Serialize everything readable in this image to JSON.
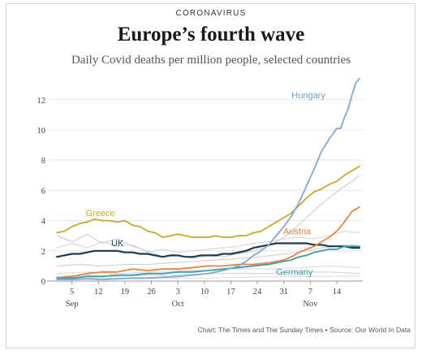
{
  "header": {
    "kicker": "CORONAVIRUS",
    "title": "Europe’s fourth wave",
    "subtitle": "Daily Covid deaths per million people, selected countries"
  },
  "footer": {
    "source": "Chart: The Times and The Sunday Times • Source: Our World In Data"
  },
  "chart_data": {
    "type": "line",
    "x_unit": "days",
    "x_domain": [
      0,
      80
    ],
    "ylim": [
      0,
      13.6
    ],
    "y_ticks": [
      0,
      2,
      4,
      6,
      8,
      10,
      12
    ],
    "x_ticks": [
      {
        "x": 4,
        "label": "5"
      },
      {
        "x": 11,
        "label": "12"
      },
      {
        "x": 18,
        "label": "19"
      },
      {
        "x": 25,
        "label": "26"
      },
      {
        "x": 32,
        "label": "3"
      },
      {
        "x": 39,
        "label": "10"
      },
      {
        "x": 46,
        "label": "17"
      },
      {
        "x": 53,
        "label": "24"
      },
      {
        "x": 60,
        "label": "31"
      },
      {
        "x": 67,
        "label": "7"
      },
      {
        "x": 74,
        "label": "14"
      }
    ],
    "month_labels": [
      {
        "x": 4,
        "label": "Sep"
      },
      {
        "x": 32,
        "label": "Oct"
      },
      {
        "x": 67,
        "label": "Nov"
      }
    ],
    "series": [
      {
        "name": "",
        "color": "#cfcfcf",
        "width": 1.2,
        "points": [
          [
            0,
            3.0
          ],
          [
            4,
            2.6
          ],
          [
            8,
            3.1
          ],
          [
            12,
            2.5
          ],
          [
            16,
            2.8
          ],
          [
            20,
            2.3
          ],
          [
            24,
            2.0
          ],
          [
            28,
            1.6
          ],
          [
            32,
            1.7
          ],
          [
            36,
            1.5
          ],
          [
            40,
            1.7
          ],
          [
            44,
            1.6
          ],
          [
            48,
            1.8
          ],
          [
            52,
            2.0
          ],
          [
            56,
            2.3
          ],
          [
            60,
            2.9
          ],
          [
            63,
            3.5
          ],
          [
            66,
            4.2
          ],
          [
            69,
            4.9
          ],
          [
            72,
            5.5
          ],
          [
            75,
            6.1
          ],
          [
            78,
            6.6
          ],
          [
            80,
            7.0
          ]
        ]
      },
      {
        "name": "",
        "color": "#d9d9d9",
        "width": 1.2,
        "points": [
          [
            0,
            2.2
          ],
          [
            4,
            2.5
          ],
          [
            8,
            2.2
          ],
          [
            12,
            2.6
          ],
          [
            16,
            2.3
          ],
          [
            20,
            2.4
          ],
          [
            24,
            1.9
          ],
          [
            28,
            2.1
          ],
          [
            32,
            1.9
          ],
          [
            36,
            2.0
          ],
          [
            40,
            2.1
          ],
          [
            44,
            2.2
          ],
          [
            48,
            2.3
          ],
          [
            52,
            2.5
          ],
          [
            56,
            2.6
          ],
          [
            60,
            2.8
          ],
          [
            64,
            2.9
          ],
          [
            68,
            2.8
          ],
          [
            72,
            3.0
          ],
          [
            76,
            3.3
          ],
          [
            80,
            3.2
          ]
        ]
      },
      {
        "name": "",
        "color": "#d2d2d2",
        "width": 1.2,
        "points": [
          [
            0,
            1.0
          ],
          [
            6,
            1.1
          ],
          [
            12,
            1.0
          ],
          [
            18,
            1.1
          ],
          [
            24,
            1.1
          ],
          [
            30,
            1.2
          ],
          [
            36,
            1.3
          ],
          [
            42,
            1.4
          ],
          [
            48,
            1.5
          ],
          [
            54,
            1.6
          ],
          [
            60,
            1.8
          ],
          [
            66,
            2.0
          ],
          [
            70,
            2.2
          ],
          [
            74,
            2.3
          ],
          [
            78,
            2.4
          ],
          [
            80,
            2.3
          ]
        ]
      },
      {
        "name": "",
        "color": "#dcdcdc",
        "width": 1.2,
        "points": [
          [
            0,
            0.5
          ],
          [
            8,
            0.6
          ],
          [
            16,
            0.5
          ],
          [
            24,
            0.6
          ],
          [
            32,
            0.7
          ],
          [
            40,
            0.7
          ],
          [
            48,
            0.8
          ],
          [
            56,
            0.8
          ],
          [
            64,
            0.9
          ],
          [
            72,
            1.0
          ],
          [
            80,
            0.9
          ]
        ]
      },
      {
        "name": "",
        "color": "#d4d4d4",
        "width": 1.2,
        "points": [
          [
            0,
            0.3
          ],
          [
            8,
            0.4
          ],
          [
            16,
            0.3
          ],
          [
            24,
            0.4
          ],
          [
            32,
            0.4
          ],
          [
            40,
            0.5
          ],
          [
            48,
            0.5
          ],
          [
            56,
            0.5
          ],
          [
            64,
            0.6
          ],
          [
            72,
            0.6
          ],
          [
            80,
            0.5
          ]
        ]
      },
      {
        "name": "",
        "color": "#e0e0e0",
        "width": 1.2,
        "points": [
          [
            0,
            0.15
          ],
          [
            10,
            0.2
          ],
          [
            20,
            0.15
          ],
          [
            30,
            0.2
          ],
          [
            40,
            0.2
          ],
          [
            50,
            0.25
          ],
          [
            60,
            0.3
          ],
          [
            70,
            0.3
          ],
          [
            80,
            0.35
          ]
        ]
      },
      {
        "name": "Greece",
        "color": "#c9a62c",
        "width": 1.8,
        "points": [
          [
            0,
            3.2
          ],
          [
            2,
            3.3
          ],
          [
            4,
            3.6
          ],
          [
            6,
            3.8
          ],
          [
            8,
            3.9
          ],
          [
            10,
            4.1
          ],
          [
            12,
            4.0
          ],
          [
            14,
            4.0
          ],
          [
            16,
            3.9
          ],
          [
            18,
            4.0
          ],
          [
            20,
            3.7
          ],
          [
            22,
            3.6
          ],
          [
            24,
            3.3
          ],
          [
            26,
            3.2
          ],
          [
            28,
            2.9
          ],
          [
            30,
            3.0
          ],
          [
            32,
            3.1
          ],
          [
            34,
            3.0
          ],
          [
            36,
            2.9
          ],
          [
            38,
            2.9
          ],
          [
            40,
            2.9
          ],
          [
            42,
            3.0
          ],
          [
            44,
            2.9
          ],
          [
            46,
            2.9
          ],
          [
            48,
            3.0
          ],
          [
            50,
            3.0
          ],
          [
            52,
            3.2
          ],
          [
            54,
            3.3
          ],
          [
            56,
            3.6
          ],
          [
            58,
            3.9
          ],
          [
            60,
            4.2
          ],
          [
            62,
            4.5
          ],
          [
            64,
            5.0
          ],
          [
            66,
            5.5
          ],
          [
            68,
            5.9
          ],
          [
            70,
            6.1
          ],
          [
            72,
            6.4
          ],
          [
            74,
            6.6
          ],
          [
            76,
            7.0
          ],
          [
            78,
            7.3
          ],
          [
            80,
            7.6
          ]
        ]
      },
      {
        "name": "UK",
        "color": "#1c3a4e",
        "width": 2.2,
        "points": [
          [
            0,
            1.6
          ],
          [
            2,
            1.7
          ],
          [
            4,
            1.8
          ],
          [
            6,
            1.8
          ],
          [
            8,
            1.9
          ],
          [
            10,
            2.0
          ],
          [
            12,
            2.0
          ],
          [
            14,
            2.0
          ],
          [
            16,
            2.0
          ],
          [
            18,
            1.9
          ],
          [
            20,
            1.9
          ],
          [
            22,
            1.8
          ],
          [
            24,
            1.8
          ],
          [
            26,
            1.7
          ],
          [
            28,
            1.6
          ],
          [
            30,
            1.7
          ],
          [
            32,
            1.7
          ],
          [
            34,
            1.6
          ],
          [
            36,
            1.6
          ],
          [
            38,
            1.7
          ],
          [
            40,
            1.7
          ],
          [
            42,
            1.7
          ],
          [
            44,
            1.8
          ],
          [
            46,
            1.8
          ],
          [
            48,
            1.9
          ],
          [
            50,
            2.0
          ],
          [
            52,
            2.2
          ],
          [
            54,
            2.3
          ],
          [
            56,
            2.4
          ],
          [
            58,
            2.5
          ],
          [
            60,
            2.5
          ],
          [
            62,
            2.5
          ],
          [
            64,
            2.5
          ],
          [
            66,
            2.5
          ],
          [
            68,
            2.4
          ],
          [
            70,
            2.4
          ],
          [
            72,
            2.3
          ],
          [
            74,
            2.3
          ],
          [
            76,
            2.3
          ],
          [
            78,
            2.2
          ],
          [
            80,
            2.2
          ]
        ]
      },
      {
        "name": "Austria",
        "color": "#e08640",
        "width": 1.8,
        "points": [
          [
            0,
            0.2
          ],
          [
            4,
            0.3
          ],
          [
            8,
            0.5
          ],
          [
            12,
            0.6
          ],
          [
            16,
            0.6
          ],
          [
            20,
            0.8
          ],
          [
            24,
            0.7
          ],
          [
            28,
            0.8
          ],
          [
            32,
            0.8
          ],
          [
            36,
            0.9
          ],
          [
            40,
            1.0
          ],
          [
            44,
            1.0
          ],
          [
            48,
            1.1
          ],
          [
            52,
            1.1
          ],
          [
            56,
            1.2
          ],
          [
            58,
            1.3
          ],
          [
            60,
            1.4
          ],
          [
            62,
            1.6
          ],
          [
            64,
            1.9
          ],
          [
            66,
            2.1
          ],
          [
            68,
            2.3
          ],
          [
            70,
            2.6
          ],
          [
            72,
            2.9
          ],
          [
            74,
            3.3
          ],
          [
            76,
            3.9
          ],
          [
            78,
            4.6
          ],
          [
            80,
            4.9
          ]
        ]
      },
      {
        "name": "Germany",
        "color": "#3d9aa6",
        "width": 1.8,
        "points": [
          [
            0,
            0.2
          ],
          [
            4,
            0.2
          ],
          [
            8,
            0.3
          ],
          [
            12,
            0.3
          ],
          [
            16,
            0.4
          ],
          [
            20,
            0.4
          ],
          [
            24,
            0.5
          ],
          [
            28,
            0.5
          ],
          [
            32,
            0.6
          ],
          [
            36,
            0.6
          ],
          [
            40,
            0.7
          ],
          [
            44,
            0.8
          ],
          [
            48,
            0.9
          ],
          [
            52,
            1.0
          ],
          [
            56,
            1.1
          ],
          [
            60,
            1.3
          ],
          [
            62,
            1.4
          ],
          [
            64,
            1.6
          ],
          [
            66,
            1.7
          ],
          [
            68,
            1.9
          ],
          [
            70,
            2.0
          ],
          [
            72,
            2.1
          ],
          [
            74,
            2.1
          ],
          [
            76,
            2.3
          ],
          [
            78,
            2.3
          ],
          [
            80,
            2.3
          ]
        ]
      },
      {
        "name": "Hungary",
        "color": "#7fa8d4",
        "width": 1.8,
        "points": [
          [
            0,
            0.1
          ],
          [
            4,
            0.1
          ],
          [
            8,
            0.15
          ],
          [
            12,
            0.1
          ],
          [
            16,
            0.15
          ],
          [
            20,
            0.2
          ],
          [
            24,
            0.2
          ],
          [
            28,
            0.25
          ],
          [
            32,
            0.3
          ],
          [
            36,
            0.4
          ],
          [
            40,
            0.5
          ],
          [
            44,
            0.7
          ],
          [
            48,
            1.0
          ],
          [
            50,
            1.3
          ],
          [
            52,
            1.7
          ],
          [
            54,
            2.0
          ],
          [
            56,
            2.4
          ],
          [
            58,
            3.0
          ],
          [
            60,
            3.6
          ],
          [
            62,
            4.3
          ],
          [
            64,
            5.2
          ],
          [
            66,
            6.3
          ],
          [
            68,
            7.4
          ],
          [
            70,
            8.6
          ],
          [
            72,
            9.4
          ],
          [
            74,
            10.1
          ],
          [
            75,
            10.1
          ],
          [
            76,
            10.8
          ],
          [
            77,
            11.4
          ],
          [
            78,
            12.3
          ],
          [
            79,
            13.1
          ],
          [
            80,
            13.4
          ]
        ]
      }
    ],
    "labels": [
      {
        "series": "Hungary",
        "x": 66.5,
        "y": 12.1,
        "color": "#6d9ccd"
      },
      {
        "series": "Greece",
        "x": 11.5,
        "y": 4.3,
        "color": "#c9a62c"
      },
      {
        "series": "UK",
        "x": 16.0,
        "y": 2.3,
        "color": "#1c3a4e"
      },
      {
        "series": "Austria",
        "x": 63.5,
        "y": 3.1,
        "color": "#e08640"
      },
      {
        "series": "Germany",
        "x": 62.8,
        "y": 0.4,
        "color": "#3d9aa6"
      }
    ]
  }
}
